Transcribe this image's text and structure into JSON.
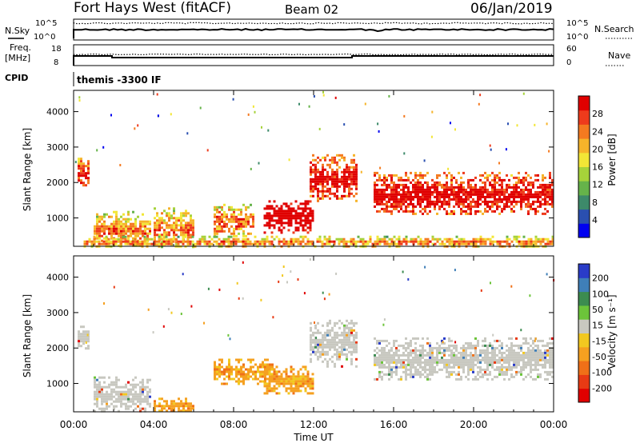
{
  "header": {
    "station": "Fort Hays West (fitACF)",
    "beam": "Beam 02",
    "date": "06/Jan/2019"
  },
  "top_panels": {
    "nsky_label": "N.Sky",
    "nsky_ticks": [
      "10^5",
      "10^0"
    ],
    "nsearch_label": "N.Search",
    "nsearch_ticks": [
      "10^5",
      "10^0"
    ],
    "freq_label_1": "Freq.",
    "freq_label_2": "[MHz]",
    "freq_ticks": [
      "18",
      "8"
    ],
    "nave_label": "Nave",
    "nave_ticks": [
      "60",
      "0"
    ],
    "cpid_label": "CPID",
    "cpid_text": "themis -3300 IF",
    "line_style_search": "dotted",
    "line_style_nave": "dotted"
  },
  "chart_data": [
    {
      "type": "heatmap",
      "name": "power",
      "ylabel": "Slant Range [km]",
      "yticks": [
        1000,
        2000,
        3000,
        4000
      ],
      "ylim": [
        200,
        4600
      ],
      "xlim": [
        0,
        24
      ],
      "colorbar": {
        "label": "Power [dB]",
        "ticks": [
          "4",
          "8",
          "12",
          "16",
          "20",
          "24",
          "28"
        ],
        "colors": [
          "#0000f0",
          "#2a4fb0",
          "#3d8a6a",
          "#66b34a",
          "#a6d23a",
          "#f2e636",
          "#f6b42a",
          "#f47a20",
          "#ee3b1c",
          "#e00000"
        ]
      },
      "features": [
        {
          "t_start": 0.2,
          "t_end": 0.7,
          "r_low": 1900,
          "r_high": 2700,
          "level": 0.7
        },
        {
          "t_start": 1.0,
          "t_end": 3.8,
          "r_low": 200,
          "r_high": 1200,
          "level": 0.5
        },
        {
          "t_start": 4.0,
          "t_end": 6.0,
          "r_low": 200,
          "r_high": 1300,
          "level": 0.5
        },
        {
          "t_start": 7.0,
          "t_end": 9.0,
          "r_low": 500,
          "r_high": 1400,
          "level": 0.55
        },
        {
          "t_start": 9.5,
          "t_end": 12.0,
          "r_low": 600,
          "r_high": 1500,
          "level": 0.95
        },
        {
          "t_start": 11.8,
          "t_end": 14.2,
          "r_low": 1500,
          "r_high": 2800,
          "level": 0.7
        },
        {
          "t_start": 15.0,
          "t_end": 24.0,
          "r_low": 1100,
          "r_high": 2300,
          "level": 0.75
        },
        {
          "t_start": 0.5,
          "t_end": 24.0,
          "r_low": 200,
          "r_high": 500,
          "level": 0.5
        }
      ]
    },
    {
      "type": "heatmap",
      "name": "velocity",
      "xlabel": "Time UT",
      "ylabel": "Slant Range [km]",
      "yticks": [
        1000,
        2000,
        3000,
        4000
      ],
      "ylim": [
        200,
        4600
      ],
      "xlim": [
        0,
        24
      ],
      "xticks": [
        "00:00",
        "04:00",
        "08:00",
        "12:00",
        "16:00",
        "20:00",
        "00:00"
      ],
      "colorbar": {
        "label": "Velocity [m s⁻¹]",
        "ticks": [
          "200",
          "100",
          "50",
          "15",
          "-15",
          "-50",
          "-100",
          "-200"
        ],
        "colors": [
          "#2a3cc8",
          "#3f7fb8",
          "#3c8c50",
          "#6cc43a",
          "#c8c8c0",
          "#f2c820",
          "#f5a020",
          "#f07018",
          "#e83a14",
          "#e00000"
        ]
      },
      "features": [
        {
          "t_start": 0.2,
          "t_end": 0.7,
          "r_low": 1900,
          "r_high": 2700,
          "level": "gray"
        },
        {
          "t_start": 1.0,
          "t_end": 3.8,
          "r_low": 200,
          "r_high": 1200,
          "level": "gray"
        },
        {
          "t_start": 4.0,
          "t_end": 6.0,
          "r_low": 200,
          "r_high": 600,
          "level": "orange"
        },
        {
          "t_start": 7.0,
          "t_end": 10.0,
          "r_low": 1000,
          "r_high": 1700,
          "level": "orange"
        },
        {
          "t_start": 9.5,
          "t_end": 12.0,
          "r_low": 700,
          "r_high": 1500,
          "level": "orange"
        },
        {
          "t_start": 11.8,
          "t_end": 14.2,
          "r_low": 1500,
          "r_high": 2800,
          "level": "gray"
        },
        {
          "t_start": 15.0,
          "t_end": 24.0,
          "r_low": 1100,
          "r_high": 2300,
          "level": "gray"
        }
      ]
    }
  ]
}
